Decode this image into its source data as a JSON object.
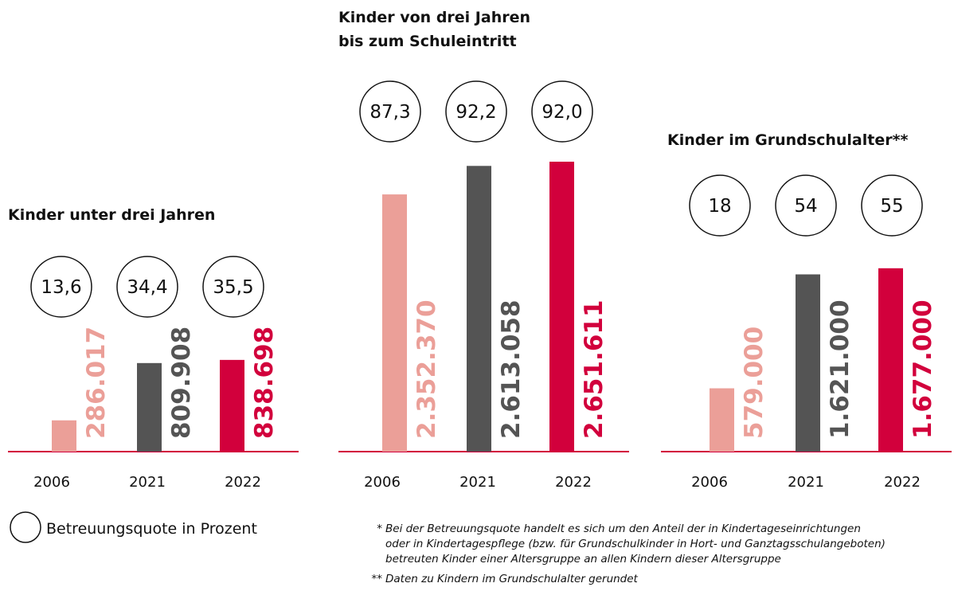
{
  "chart_data": [
    {
      "type": "bar",
      "title": [
        "Kinder unter drei Jahren"
      ],
      "categories": [
        "2006",
        "2021",
        "2022"
      ],
      "values": [
        286017,
        809908,
        838698
      ],
      "value_labels": [
        "286.017",
        "809.908",
        "838.698"
      ],
      "colors": [
        "#eb9f98",
        "#545454",
        "#d2003c"
      ],
      "quota": [
        13.6,
        34.4,
        35.5
      ],
      "quota_labels": [
        "13,6",
        "34,4",
        "35,5"
      ]
    },
    {
      "type": "bar",
      "title": [
        "Kinder von drei Jahren",
        "bis zum Schuleintritt"
      ],
      "categories": [
        "2006",
        "2021",
        "2022"
      ],
      "values": [
        2352370,
        2613058,
        2651611
      ],
      "value_labels": [
        "2.352.370",
        "2.613.058",
        "2.651.611"
      ],
      "colors": [
        "#eb9f98",
        "#545454",
        "#d2003c"
      ],
      "quota": [
        87.3,
        92.2,
        92.0
      ],
      "quota_labels": [
        "87,3",
        "92,2",
        "92,0"
      ]
    },
    {
      "type": "bar",
      "title": [
        "Kinder im Grundschulalter**"
      ],
      "categories": [
        "2006",
        "2021",
        "2022"
      ],
      "values": [
        579000,
        1621000,
        1677000
      ],
      "value_labels": [
        "579.000",
        "1.621.000",
        "1.677.000"
      ],
      "colors": [
        "#eb9f98",
        "#545454",
        "#d2003c"
      ],
      "quota": [
        18,
        54,
        55
      ]
    }
  ],
  "legend": "Betreuungsquote in Prozent",
  "footnotes": [
    {
      "mark": "*",
      "lines": [
        "Bei der Betreuungsquote handelt es sich um den Anteil der in Kindertageseinrichtungen",
        "oder in Kindertagespflege (bzw. für Grundschulkinder in Hort- und Ganztagsschulangeboten)",
        "betreuten Kinder einer Altersgruppe an allen Kindern dieser Altersgruppe"
      ]
    },
    {
      "mark": "**",
      "lines": [
        "Daten zu Kindern im Grundschulalter gerundet"
      ]
    }
  ]
}
